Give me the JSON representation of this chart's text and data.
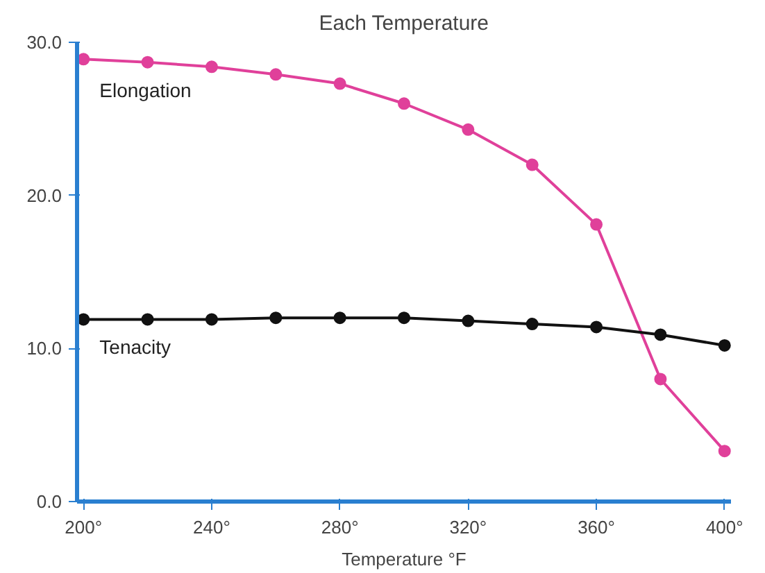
{
  "chart_data": {
    "type": "line",
    "title": "Each Temperature",
    "xlabel": "Temperature °F",
    "x": [
      200,
      220,
      240,
      260,
      280,
      300,
      320,
      340,
      360,
      380,
      400
    ],
    "xlim": [
      198,
      402
    ],
    "ylim": [
      0,
      30
    ],
    "xticks": [
      {
        "value": 200,
        "label": "200°"
      },
      {
        "value": 240,
        "label": "240°"
      },
      {
        "value": 280,
        "label": "280°"
      },
      {
        "value": 320,
        "label": "320°"
      },
      {
        "value": 360,
        "label": "360°"
      },
      {
        "value": 400,
        "label": "400°"
      }
    ],
    "yticks": [
      {
        "value": 0,
        "label": "0.0"
      },
      {
        "value": 10,
        "label": "10.0"
      },
      {
        "value": 20,
        "label": "20.0"
      },
      {
        "value": 30,
        "label": "30.0"
      }
    ],
    "grid": false,
    "marker": "circle",
    "line_style": "solid",
    "series": [
      {
        "name": "Elongation",
        "color": "#e0409a",
        "values": [
          28.9,
          28.7,
          28.4,
          27.9,
          27.3,
          26.0,
          24.3,
          22.0,
          18.1,
          8.0,
          3.3
        ]
      },
      {
        "name": "Tenacity",
        "color": "#111111",
        "values": [
          11.9,
          11.9,
          11.9,
          12.0,
          12.0,
          12.0,
          11.8,
          11.6,
          11.4,
          10.9,
          10.2
        ]
      }
    ]
  }
}
